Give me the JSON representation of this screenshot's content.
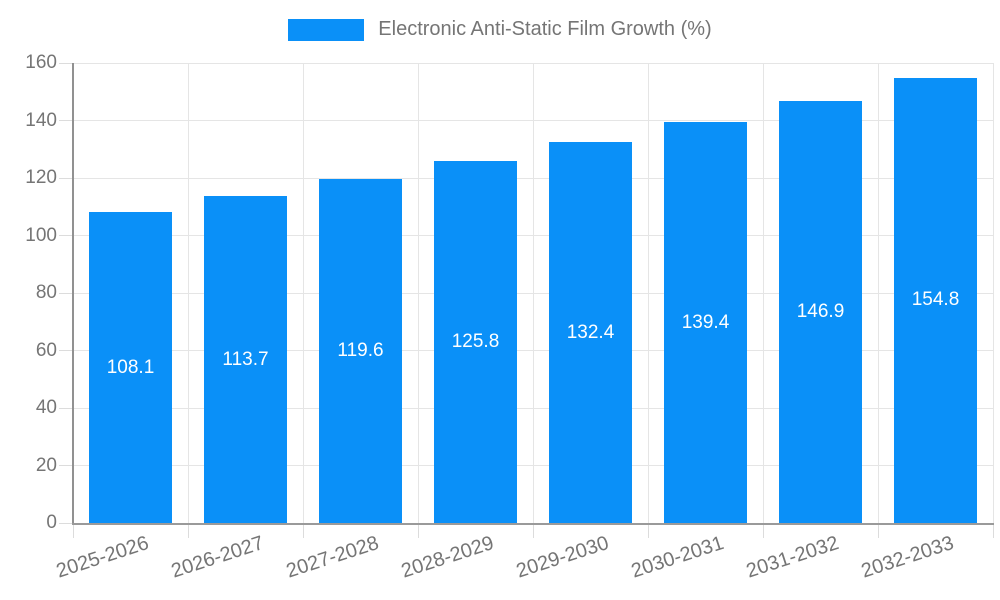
{
  "legend": {
    "label": "Electronic Anti-Static Film Growth (%)",
    "position": "top"
  },
  "chart_data": {
    "type": "bar",
    "title": "Electronic Anti-Static Film Growth (%)",
    "series_name": "Electronic Anti-Static Film Growth (%)",
    "categories": [
      "2025-2026",
      "2026-2027",
      "2027-2028",
      "2028-2029",
      "2029-2030",
      "2030-2031",
      "2031-2032",
      "2032-2033"
    ],
    "values": [
      108.1,
      113.7,
      119.6,
      125.8,
      132.4,
      139.4,
      146.9,
      154.8
    ],
    "xlabel": "",
    "ylabel": "",
    "ylim": [
      0,
      160
    ],
    "yticks": [
      0,
      20,
      40,
      60,
      80,
      100,
      120,
      140,
      160
    ],
    "grid": true,
    "legend_position": "top",
    "value_labels": "centered-in-bar",
    "colors": {
      "bar": "#0a90f8",
      "value_label": "#ffffff",
      "axis_text": "#757575",
      "grid_line": "#e5e5e5",
      "axis_line": "#9a9a9a",
      "tick_line": "#dcdcdc",
      "background": "#ffffff"
    }
  }
}
